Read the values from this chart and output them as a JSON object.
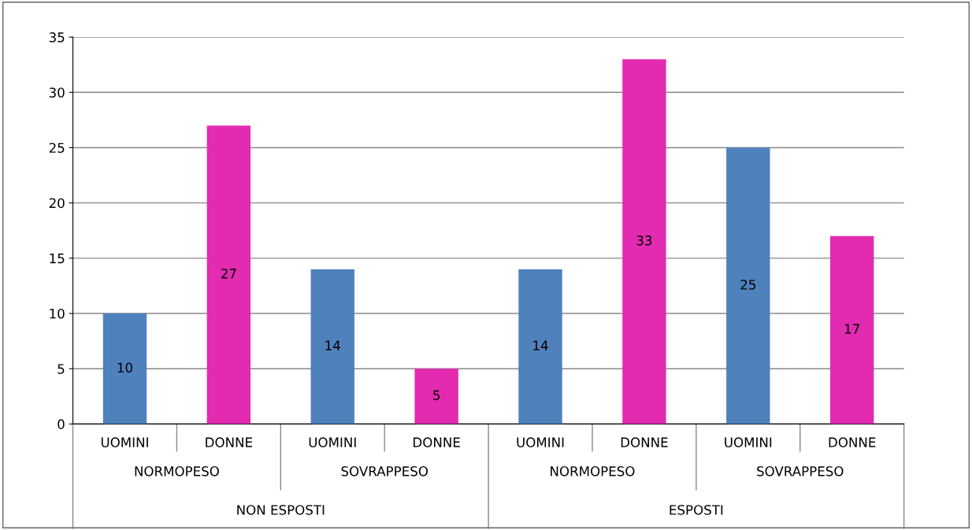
{
  "chart_data": {
    "type": "bar",
    "categories": [
      "UOMINI",
      "DONNE",
      "UOMINI",
      "DONNE",
      "UOMINI",
      "DONNE",
      "UOMINI",
      "DONNE"
    ],
    "values": [
      10,
      27,
      14,
      5,
      14,
      33,
      25,
      17
    ],
    "colors": [
      "#4f81bd",
      "#e22bb0",
      "#4f81bd",
      "#e22bb0",
      "#4f81bd",
      "#e22bb0",
      "#4f81bd",
      "#e22bb0"
    ],
    "annotations": [
      "NORMOPESO",
      "SOVRAPPESO",
      "NORMOPESO",
      "SOVRAPPESO",
      "NON ESPOSTI",
      "ESPOSTI"
    ],
    "ylim": [
      0,
      35
    ],
    "yticks": [
      0,
      5,
      10,
      15,
      20,
      25,
      30,
      35
    ],
    "grid": "y",
    "data_labels": true
  }
}
